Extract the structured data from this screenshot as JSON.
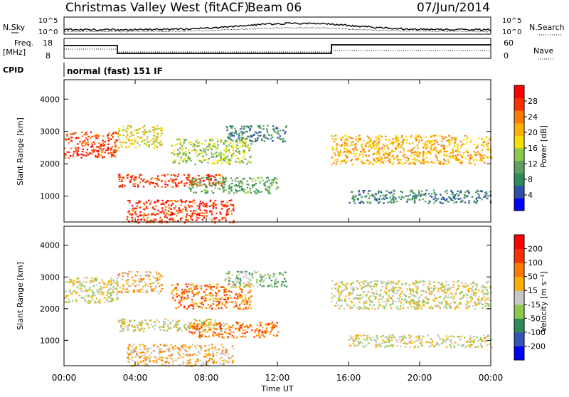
{
  "header": {
    "title": "Christmas Valley West (fitACF)",
    "beam": "Beam 06",
    "date": "07/Jun/2014"
  },
  "nsky_panel": {
    "left_label": "N.Sky",
    "right_label": "N.Search",
    "left_ticks": [
      "10^5",
      "10^0"
    ],
    "right_ticks": [
      "10^5",
      "10^0"
    ]
  },
  "freq_panel": {
    "left_label_1": "Freq.",
    "left_label_2": "[MHz]",
    "left_ticks": [
      "18",
      "8"
    ],
    "right_ticks": [
      "60",
      "0"
    ],
    "right_label": "Nave"
  },
  "cpid_panel": {
    "label": "CPID",
    "text": "normal (fast) 151 IF"
  },
  "chart_data": [
    {
      "type": "heatmap",
      "name": "power",
      "ylabel": "Slant Range [km]",
      "xlabel": "",
      "yticks": [
        "4000",
        "3000",
        "2000",
        "1000"
      ],
      "ylim": [
        200,
        4600
      ],
      "xlim": [
        0,
        24
      ],
      "colorbar_label": "Power [dB]",
      "colorbar_ticks": [
        "28",
        "24",
        "20",
        "16",
        "12",
        "8",
        "4"
      ],
      "colors": [
        "#0000ff",
        "#2f4fa8",
        "#2e8b57",
        "#5fa060",
        "#8dc84e",
        "#f3e000",
        "#ffb000",
        "#ff7a00",
        "#ff3000",
        "#ff0000"
      ],
      "bands": [
        {
          "t": [
            0.0,
            3.0
          ],
          "r": [
            2200,
            3000
          ],
          "level": 8
        },
        {
          "t": [
            3.0,
            9.0
          ],
          "r": [
            1300,
            1700
          ],
          "level": 8
        },
        {
          "t": [
            3.0,
            5.5
          ],
          "r": [
            2500,
            3200
          ],
          "level": 5
        },
        {
          "t": [
            6.0,
            10.5
          ],
          "r": [
            2000,
            2800
          ],
          "level": 4
        },
        {
          "t": [
            9.0,
            12.5
          ],
          "r": [
            2700,
            3200
          ],
          "level": 2
        },
        {
          "t": [
            7.0,
            12.0
          ],
          "r": [
            1100,
            1600
          ],
          "level": 3
        },
        {
          "t": [
            3.5,
            9.5
          ],
          "r": [
            200,
            900
          ],
          "level": 8
        },
        {
          "t": [
            15.0,
            24.0
          ],
          "r": [
            2000,
            2900
          ],
          "level": 6
        },
        {
          "t": [
            16.0,
            24.0
          ],
          "r": [
            800,
            1200
          ],
          "level": 2
        }
      ]
    },
    {
      "type": "heatmap",
      "name": "velocity",
      "ylabel": "Slant Range [km]",
      "xlabel": "Time UT",
      "yticks": [
        "4000",
        "3000",
        "2000",
        "1000"
      ],
      "ylim": [
        200,
        4600
      ],
      "xlim": [
        0,
        24
      ],
      "xticks": [
        "00:00",
        "04:00",
        "08:00",
        "12:00",
        "16:00",
        "20:00",
        "00:00"
      ],
      "colorbar_label": "Velocity [m s⁻¹]",
      "colorbar_ticks": [
        "200",
        "100",
        "50",
        "15",
        "-15",
        "-50",
        "-100",
        "-200"
      ],
      "colors": [
        "#0000ff",
        "#3355bb",
        "#2e8b57",
        "#8dc84e",
        "#c8c8c8",
        "#ffb000",
        "#ff7a00",
        "#ff3000",
        "#ff0000"
      ],
      "bands": [
        {
          "t": [
            0.0,
            3.0
          ],
          "r": [
            2200,
            3000
          ],
          "level": 4
        },
        {
          "t": [
            3.0,
            9.0
          ],
          "r": [
            1300,
            1700
          ],
          "level": 4
        },
        {
          "t": [
            3.0,
            5.5
          ],
          "r": [
            2500,
            3200
          ],
          "level": 5
        },
        {
          "t": [
            6.0,
            10.5
          ],
          "r": [
            2000,
            2800
          ],
          "level": 6
        },
        {
          "t": [
            9.0,
            12.5
          ],
          "r": [
            2700,
            3200
          ],
          "level": 3
        },
        {
          "t": [
            7.0,
            12.0
          ],
          "r": [
            1100,
            1600
          ],
          "level": 6
        },
        {
          "t": [
            3.5,
            9.5
          ],
          "r": [
            200,
            900
          ],
          "level": 5
        },
        {
          "t": [
            15.0,
            24.0
          ],
          "r": [
            2000,
            2900
          ],
          "level": 4
        },
        {
          "t": [
            16.0,
            24.0
          ],
          "r": [
            800,
            1200
          ],
          "level": 4
        }
      ]
    }
  ]
}
